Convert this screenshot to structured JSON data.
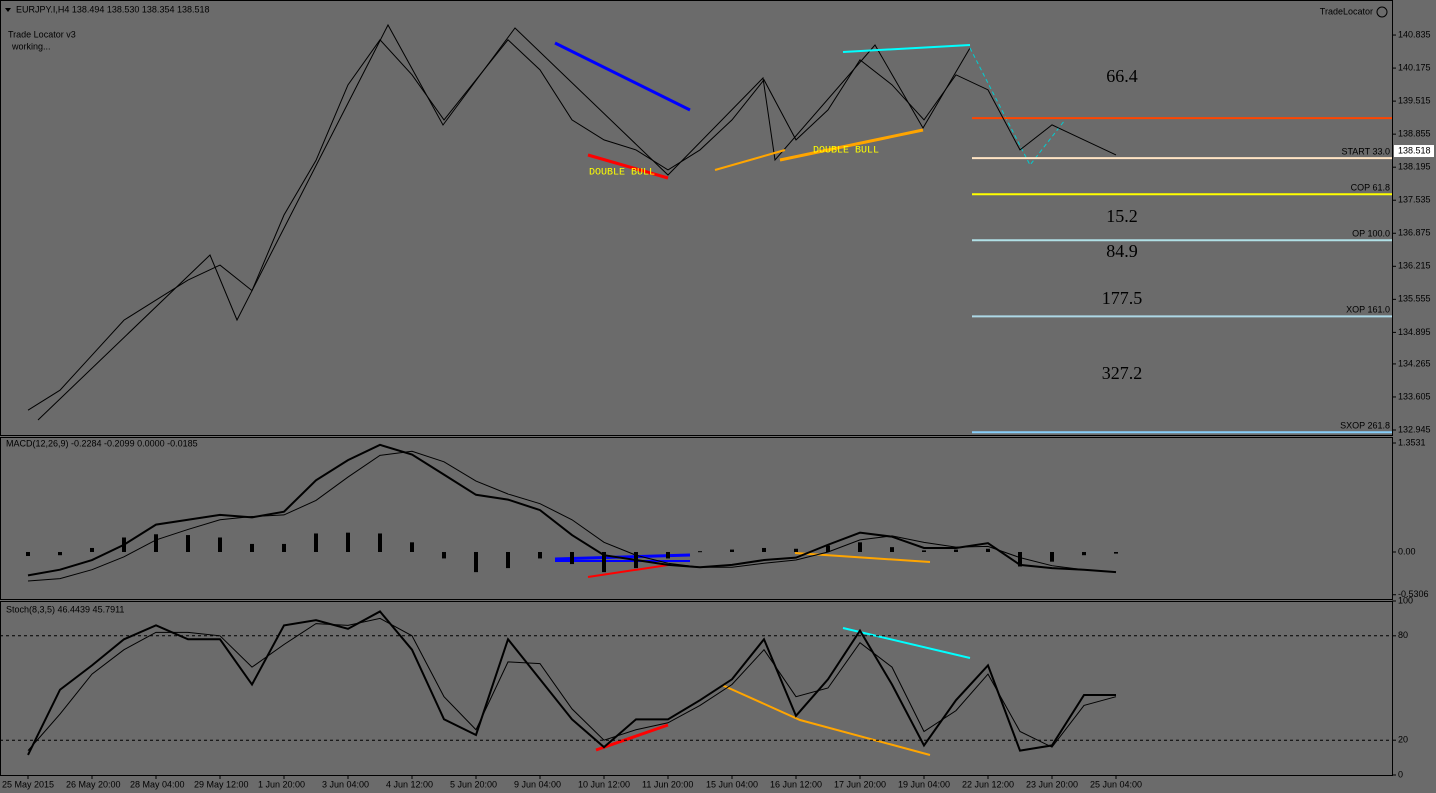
{
  "chart_data": [
    {
      "type": "line",
      "title": "EURJPY.I,H4  138.494 138.530 138.354 138.518",
      "annotations": [
        "Trade Locator v3",
        "working...",
        "TradeLocator",
        "DOUBLE BULL",
        "DOUBLE BULL"
      ],
      "ratio_labels": [
        {
          "text": "66.4",
          "color": "#ff4500"
        },
        {
          "text": "15.2",
          "color": "#ffffff"
        },
        {
          "text": "84.9",
          "color": "#ffff00"
        },
        {
          "text": "177.5",
          "color": "#add8e6"
        },
        {
          "text": "327.2",
          "color": "#87cefa"
        }
      ],
      "price_label": 138.518,
      "ylim": [
        132.845,
        141.535
      ],
      "yticks": [
        140.835,
        140.175,
        139.515,
        138.855,
        138.195,
        137.535,
        136.875,
        136.215,
        135.555,
        134.895,
        134.265,
        133.605,
        132.945
      ],
      "levels": [
        {
          "value": 139.175,
          "color": "#ff4500"
        },
        {
          "value": 138.375,
          "label": "START 33.0",
          "color": "#ffe4c4"
        },
        {
          "value": 137.655,
          "label": "COP 61.8",
          "color": "#ffff00"
        },
        {
          "value": 136.735,
          "label": "OP 100.0",
          "color": "#b0e0e6"
        },
        {
          "value": 135.215,
          "label": "XOP 161.0",
          "color": "#add8e6"
        },
        {
          "value": 132.9,
          "label": "SXOP 261.8",
          "color": "#87cefa"
        }
      ],
      "series": [
        {
          "name": "EURJPY.I",
          "color": "#000000",
          "values": [
            133.34,
            133.74,
            134.44,
            135.14,
            135.54,
            135.94,
            136.24,
            135.73,
            137.24,
            138.33,
            139.84,
            140.74,
            140.04,
            139.14,
            139.94,
            140.74,
            140.14,
            139.14,
            138.74,
            138.54,
            138.14,
            138.54,
            139.14,
            139.94,
            138.74,
            139.34,
            140.34,
            139.84,
            139.14,
            140.04,
            139.74,
            138.54,
            139.04,
            138.74,
            138.44
          ]
        }
      ]
    },
    {
      "type": "line",
      "title": "MACD(12,26,9) -0.2284 -0.2099 0.0000 -0.0185",
      "ylim": [
        -0.596,
        1.4275
      ],
      "yticks": [
        1.3531,
        {
          "value": 0,
          "label": "0.00"
        },
        -0.5306
      ],
      "series": [
        {
          "name": "Histogram",
          "type": "bar",
          "color": "#000000",
          "values": [
            -0.05,
            -0.04,
            0.05,
            0.18,
            0.22,
            0.21,
            0.18,
            0.1,
            0.1,
            0.23,
            0.24,
            0.23,
            0.12,
            -0.08,
            -0.25,
            -0.2,
            -0.08,
            -0.15,
            -0.25,
            -0.2,
            -0.08,
            0.01,
            0.03,
            0.05,
            0.04,
            0.08,
            0.12,
            0.06,
            0.02,
            0.03,
            0.04,
            -0.18,
            -0.12,
            -0.04,
            -0.02
          ]
        },
        {
          "name": "MACD",
          "color": "#000000",
          "width": 2,
          "values": [
            -0.29,
            -0.22,
            -0.1,
            0.09,
            0.34,
            0.4,
            0.46,
            0.43,
            0.5,
            0.89,
            1.14,
            1.33,
            1.21,
            0.96,
            0.71,
            0.65,
            0.52,
            0.21,
            -0.04,
            -0.1,
            -0.16,
            -0.19,
            -0.16,
            -0.1,
            -0.07,
            0.09,
            0.24,
            0.19,
            0.05,
            0.05,
            0.11,
            -0.16,
            -0.2,
            -0.22,
            -0.25
          ]
        },
        {
          "name": "Signal",
          "color": "#000000",
          "width": 1,
          "values": [
            -0.36,
            -0.33,
            -0.22,
            -0.06,
            0.15,
            0.28,
            0.4,
            0.44,
            0.46,
            0.64,
            0.93,
            1.2,
            1.25,
            1.12,
            0.88,
            0.72,
            0.6,
            0.4,
            0.12,
            -0.04,
            -0.14,
            -0.19,
            -0.19,
            -0.14,
            -0.1,
            0.0,
            0.15,
            0.2,
            0.12,
            0.06,
            0.07,
            -0.07,
            -0.17,
            -0.22,
            -0.25
          ]
        }
      ]
    },
    {
      "type": "line",
      "title": "Stoch(8,3,5) 46.4439 45.7911",
      "ylim": [
        0,
        100
      ],
      "yticks": [
        100,
        80,
        20,
        0
      ],
      "levels": [
        80,
        20
      ],
      "categories": [
        "25 May 2015",
        null,
        "26 May 20:00",
        null,
        "28 May 04:00",
        null,
        "29 May 12:00",
        null,
        "1 Jun 20:00",
        null,
        "3 Jun 04:00",
        null,
        "4 Jun 12:00",
        null,
        "5 Jun 20:00",
        null,
        "9 Jun 04:00",
        null,
        "10 Jun 12:00",
        null,
        "11 Jun 20:00",
        null,
        "15 Jun 04:00",
        null,
        "16 Jun 12:00",
        null,
        "17 Jun 20:00",
        null,
        "19 Jun 04:00",
        null,
        "22 Jun 12:00",
        null,
        "23 Jun 20:00",
        null,
        "25 Jun 04:00"
      ],
      "series": [
        {
          "name": "Main",
          "color": "#000000",
          "width": 2,
          "values": [
            11.5,
            49,
            63,
            78,
            86,
            78,
            78,
            52,
            86,
            89,
            84,
            94,
            72,
            32,
            23,
            78,
            55,
            32,
            16,
            32,
            32,
            43,
            55,
            78,
            34,
            55,
            83,
            52,
            17,
            43,
            63,
            14,
            17,
            46,
            46
          ]
        },
        {
          "name": "Signal",
          "color": "#000000",
          "width": 1,
          "values": [
            14,
            35,
            58,
            72,
            82,
            82,
            80,
            62,
            75,
            87,
            86,
            90,
            80,
            45,
            26,
            65,
            64,
            38,
            20,
            26,
            30,
            40,
            52,
            72,
            45,
            50,
            76,
            62,
            25,
            37,
            58,
            25,
            16,
            40,
            45
          ]
        }
      ]
    }
  ]
}
